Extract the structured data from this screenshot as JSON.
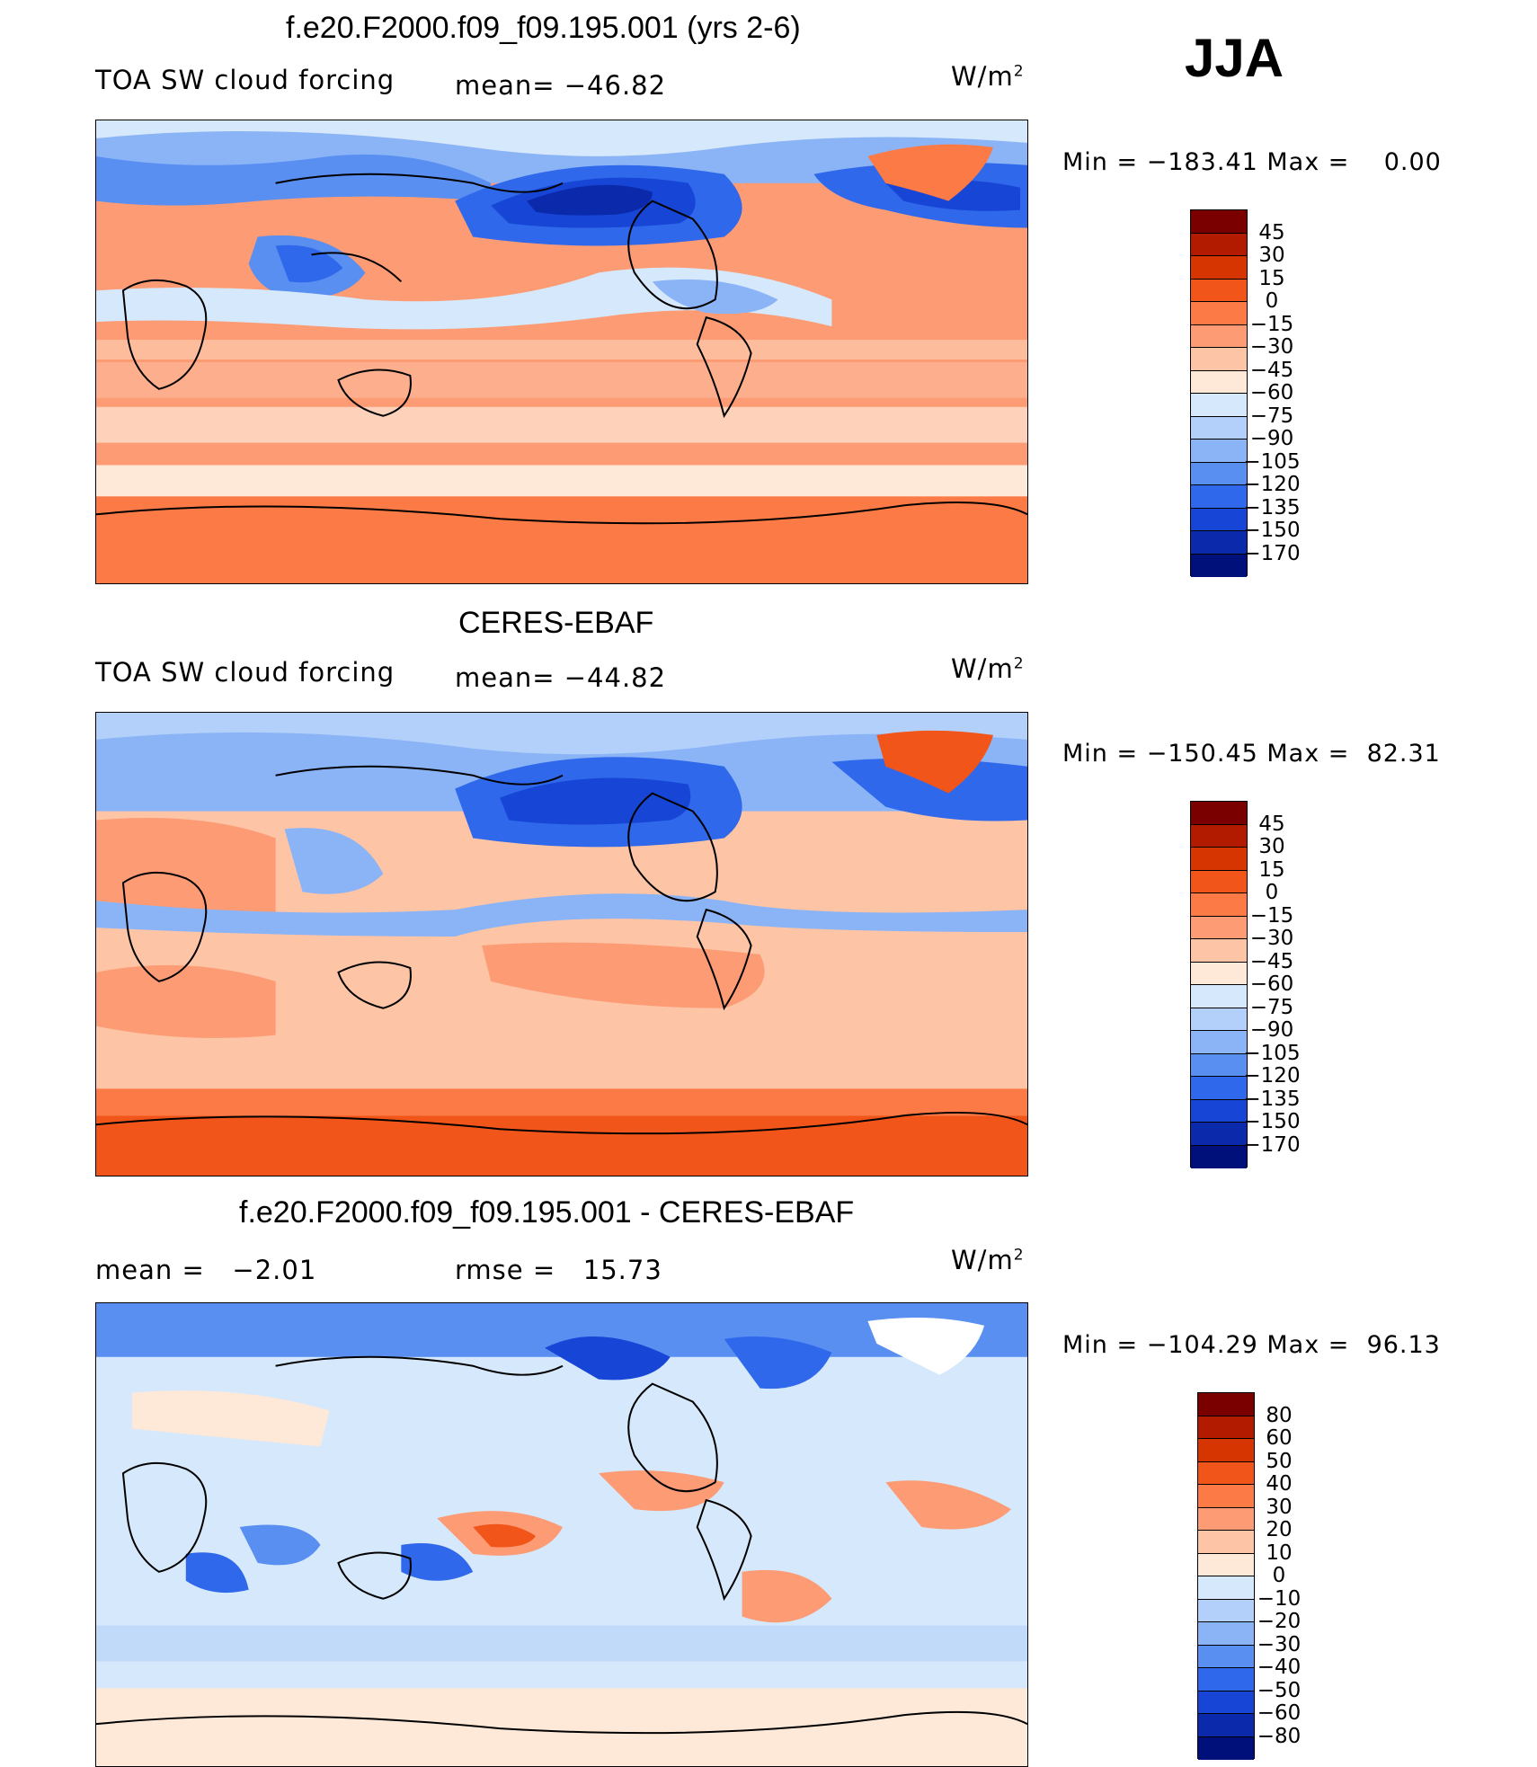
{
  "season": "JJA",
  "panels": [
    {
      "title": "f.e20.F2000.f09_f09.195.001 (yrs 2-6)",
      "left_label": "TOA SW cloud forcing",
      "mid_label": "mean= −46.82",
      "units_main": "W/m",
      "units_sup": "2",
      "minmax": "Min = −183.41 Max =    0.00",
      "colorbar_labels": [
        "45",
        "30",
        "15",
        "0",
        "−15",
        "−30",
        "−45",
        "−60",
        "−75",
        "−90",
        "−105",
        "−120",
        "−135",
        "−150",
        "−170"
      ]
    },
    {
      "title": "CERES-EBAF",
      "left_label": "TOA SW cloud forcing",
      "mid_label": "mean= −44.82",
      "units_main": "W/m",
      "units_sup": "2",
      "minmax": "Min = −150.45 Max =  82.31",
      "colorbar_labels": [
        "45",
        "30",
        "15",
        "0",
        "−15",
        "−30",
        "−45",
        "−60",
        "−75",
        "−90",
        "−105",
        "−120",
        "−135",
        "−150",
        "−170"
      ]
    },
    {
      "title": "f.e20.F2000.f09_f09.195.001 - CERES-EBAF",
      "left_label": "mean =   −2.01",
      "mid_label": "rmse =   15.73",
      "units_main": "W/m",
      "units_sup": "2",
      "minmax": "Min = −104.29 Max =  96.13",
      "colorbar_labels": [
        "80",
        "60",
        "50",
        "40",
        "30",
        "20",
        "10",
        "0",
        "−10",
        "−20",
        "−30",
        "−40",
        "−50",
        "−60",
        "−80"
      ]
    }
  ],
  "colors": {
    "abs_scale": [
      "#7a0000",
      "#b31b00",
      "#d63400",
      "#f2551a",
      "#fc7a45",
      "#fc9b74",
      "#fdc4a6",
      "#fee8d8",
      "#d6e8fb",
      "#b3d0fa",
      "#8bb4f7",
      "#5a8ff2",
      "#2f68ea",
      "#1745d6",
      "#0a2aab",
      "#00107a"
    ],
    "diff_scale": [
      "#7a0000",
      "#b31b00",
      "#d63400",
      "#f2551a",
      "#fc7a45",
      "#fc9b74",
      "#fdc4a6",
      "#fee8d8",
      "#ffffff",
      "#d6e8fb",
      "#b3d0fa",
      "#8bb4f7",
      "#5a8ff2",
      "#2f68ea",
      "#1745d6",
      "#0a2aab",
      "#00107a"
    ]
  }
}
